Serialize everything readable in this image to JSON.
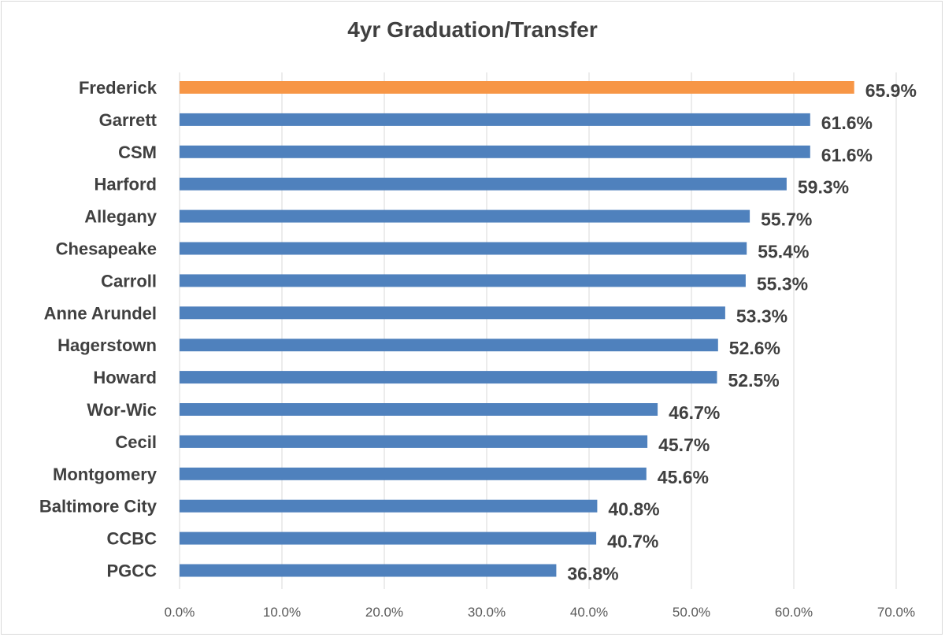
{
  "chart_data": {
    "type": "bar",
    "orientation": "horizontal",
    "title": "4yr Graduation/Transfer",
    "xlabel": "",
    "ylabel": "",
    "categories": [
      "Frederick",
      "Garrett",
      "CSM",
      "Harford",
      "Allegany",
      "Chesapeake",
      "Carroll",
      "Anne Arundel",
      "Hagerstown",
      "Howard",
      "Wor-Wic",
      "Cecil",
      "Montgomery",
      "Baltimore City",
      "CCBC",
      "PGCC"
    ],
    "values": [
      65.9,
      61.6,
      61.6,
      59.3,
      55.7,
      55.4,
      55.3,
      53.3,
      52.6,
      52.5,
      46.7,
      45.7,
      45.6,
      40.8,
      40.7,
      36.8
    ],
    "value_labels": [
      "65.9%",
      "61.6%",
      "61.6%",
      "59.3%",
      "55.7%",
      "55.4%",
      "55.3%",
      "53.3%",
      "52.6%",
      "52.5%",
      "46.7%",
      "45.7%",
      "45.6%",
      "40.8%",
      "40.7%",
      "36.8%"
    ],
    "xlim": [
      0,
      70
    ],
    "x_ticks": [
      "0.0%",
      "10.0%",
      "20.0%",
      "30.0%",
      "40.0%",
      "50.0%",
      "60.0%",
      "70.0%"
    ],
    "grid": true,
    "legend": "none",
    "colors": {
      "highlight": "#f79646",
      "default": "#4f81bd",
      "grid": "#d9d9d9"
    },
    "highlight_category": "Frederick"
  }
}
